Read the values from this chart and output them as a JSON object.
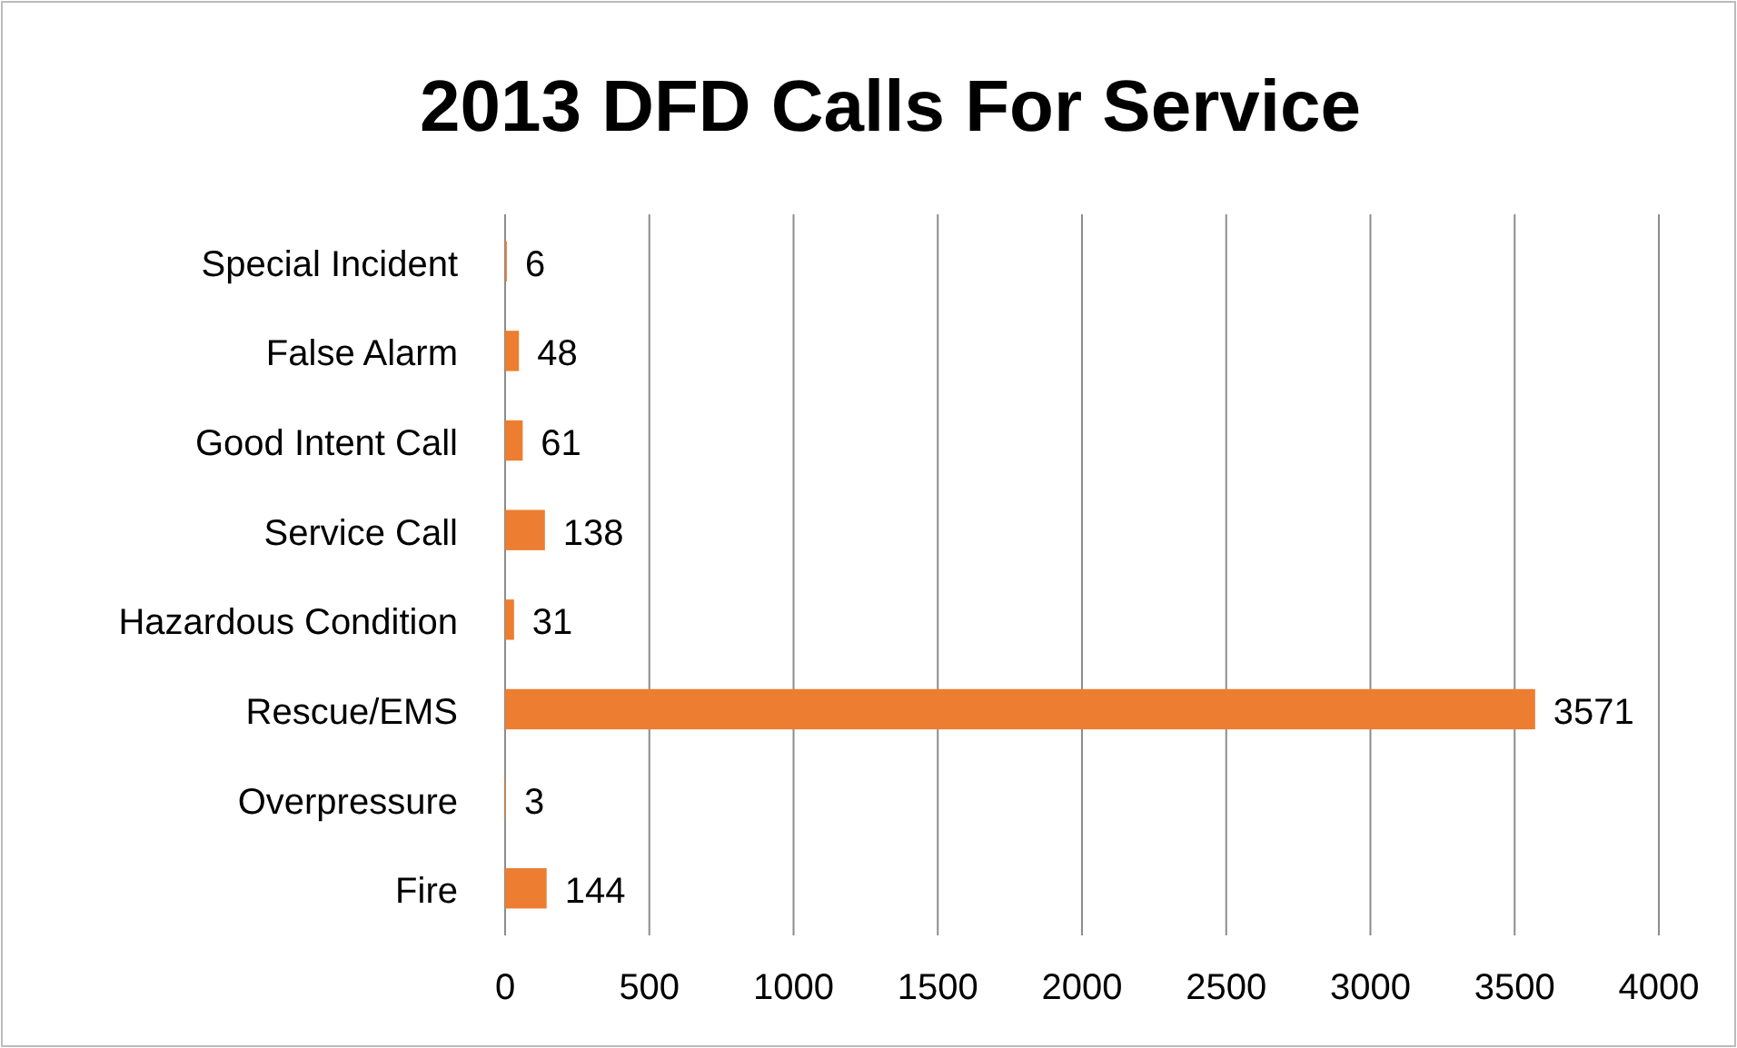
{
  "chart_data": {
    "type": "bar",
    "orientation": "horizontal",
    "title": "2013 DFD Calls For Service",
    "categories": [
      "Special Incident",
      "False Alarm",
      "Good Intent Call",
      "Service Call",
      "Hazardous Condition",
      "Rescue/EMS",
      "Overpressure",
      "Fire"
    ],
    "values": [
      6,
      48,
      61,
      138,
      31,
      3571,
      3,
      144
    ],
    "color": "#ed7d31",
    "xlim": [
      0,
      4000
    ],
    "xticks": [
      0,
      500,
      1000,
      1500,
      2000,
      2500,
      3000,
      3500,
      4000
    ],
    "grid": "x",
    "data_labels": true
  }
}
